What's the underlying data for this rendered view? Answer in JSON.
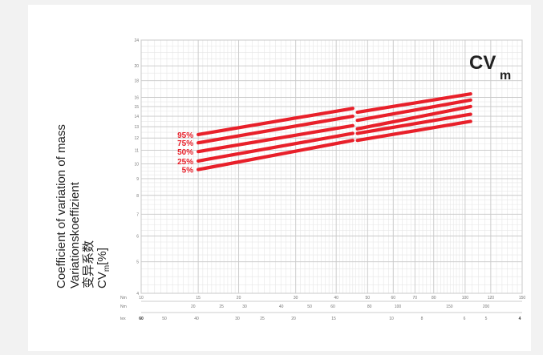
{
  "chart_data": {
    "type": "line",
    "title": "CV",
    "title_subscript": "m",
    "ylabel": [
      "Coefficient of variation of mass",
      "Variationskoeffizient",
      "变异系数"
    ],
    "ylabel_symbol": "CV",
    "ylabel_symbol_sub": "m",
    "ylabel_unit": "[%]",
    "ylim": [
      4,
      24
    ],
    "y_scale": "log",
    "y_ticks": [
      4,
      5,
      6,
      7,
      8,
      9,
      10,
      11,
      12,
      13,
      14,
      15,
      16,
      18,
      20,
      24
    ],
    "x_scale": "log",
    "xlim_nm": [
      10,
      150
    ],
    "grid": true,
    "x_axes": [
      {
        "label": "Nm",
        "ticks": [
          "10",
          "15",
          "20",
          "30",
          "40",
          "50",
          "60",
          "70",
          "80",
          "100",
          "120",
          "150"
        ]
      },
      {
        "label": "Nm",
        "ticks": [
          "20",
          "25",
          "30",
          "40",
          "50",
          "60",
          "80",
          "100",
          "150",
          "200"
        ]
      },
      {
        "label": "tex",
        "ticks": [
          "60",
          "50",
          "40",
          "30",
          "25",
          "20",
          "15",
          "10",
          "8",
          "6",
          "5",
          "4"
        ]
      }
    ],
    "series": [
      {
        "name": "95%",
        "color": "#e8202a",
        "segments": [
          {
            "x": [
              15,
              45
            ],
            "y": [
              12.3,
              14.8
            ]
          },
          {
            "x": [
              46.5,
              104
            ],
            "y": [
              14.4,
              16.4
            ]
          }
        ]
      },
      {
        "name": "75%",
        "color": "#e8202a",
        "segments": [
          {
            "x": [
              15,
              45
            ],
            "y": [
              11.6,
              14.0
            ]
          },
          {
            "x": [
              46.5,
              104
            ],
            "y": [
              13.6,
              15.7
            ]
          }
        ]
      },
      {
        "name": "50%",
        "color": "#e8202a",
        "segments": [
          {
            "x": [
              15,
              45
            ],
            "y": [
              10.9,
              13.1
            ]
          },
          {
            "x": [
              46.5,
              104
            ],
            "y": [
              12.8,
              15.0
            ]
          }
        ]
      },
      {
        "name": "25%",
        "color": "#e8202a",
        "segments": [
          {
            "x": [
              15,
              45
            ],
            "y": [
              10.2,
              12.4
            ]
          },
          {
            "x": [
              46.5,
              104
            ],
            "y": [
              12.4,
              14.2
            ]
          }
        ]
      },
      {
        "name": "5%",
        "color": "#e8202a",
        "segments": [
          {
            "x": [
              15,
              45
            ],
            "y": [
              9.6,
              11.8
            ]
          },
          {
            "x": [
              46.5,
              104
            ],
            "y": [
              11.8,
              13.5
            ]
          }
        ]
      }
    ]
  }
}
